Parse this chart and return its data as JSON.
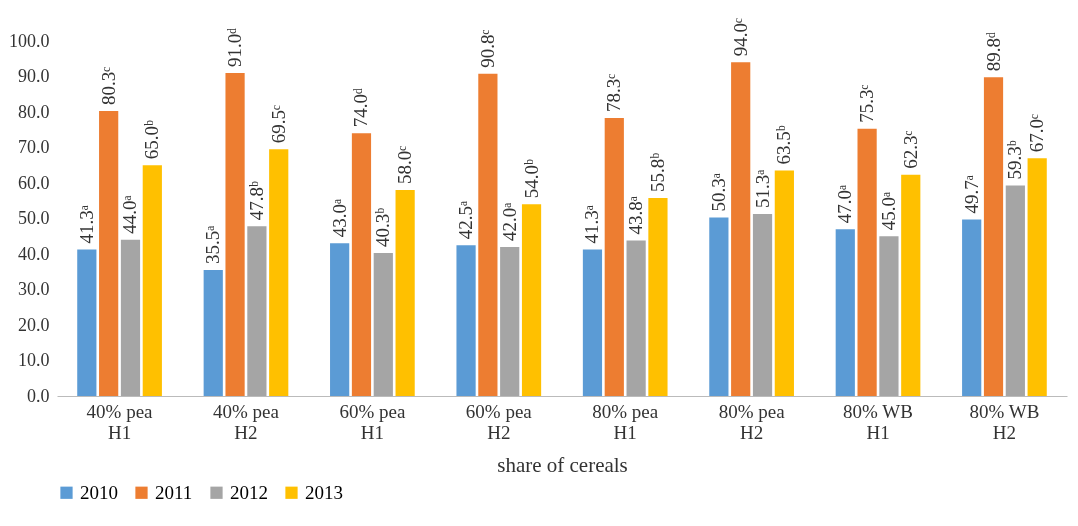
{
  "chart_data": {
    "type": "bar",
    "xlabel": "share of cereals",
    "categories": [
      "40%      pea\nH1",
      "40%      pea\nH2",
      "60%      pea\nH1",
      "60%      pea\nH2",
      "80%      pea\nH1",
      "80%      pea\nH2",
      "80%      WB\nH1",
      "80%      WB\nH2"
    ],
    "series": [
      {
        "name": "2010",
        "color": "#5b9bd5",
        "values": [
          41.3,
          35.5,
          43.0,
          42.5,
          41.3,
          50.3,
          47.0,
          49.7
        ],
        "value_labels": [
          "41.3ᵃ",
          "35.5ᵃ",
          "43.0ᵃ",
          "42.5ᵃ",
          "41.3ᵃ",
          "50.3ᵃ",
          "47.0ᵃ",
          "49.7ᵃ"
        ]
      },
      {
        "name": "2011",
        "color": "#ed7d31",
        "values": [
          80.3,
          91.0,
          74.0,
          90.8,
          78.3,
          94.0,
          75.3,
          89.8
        ],
        "value_labels": [
          "80.3ᶜ",
          "91.0ᵈ",
          "74.0ᵈ",
          "90.8ᶜ",
          "78.3ᶜ",
          "94.0ᶜ",
          "75.3ᶜ",
          "89.8ᵈ"
        ]
      },
      {
        "name": "2012",
        "color": "#a5a5a5",
        "values": [
          44.0,
          47.8,
          40.3,
          42.0,
          43.8,
          51.3,
          45.0,
          59.3
        ],
        "value_labels": [
          "44.0ᵃ",
          "47.8ᵇ",
          "40.3ᵇ",
          "42.0ᵃ",
          "43.8ᵃ",
          "51.3ᵃ",
          "45.0ᵃ",
          "59.3ᵇ"
        ]
      },
      {
        "name": "2013",
        "color": "#ffc000",
        "values": [
          65.0,
          69.5,
          58.0,
          54.0,
          55.8,
          63.5,
          62.3,
          67.0
        ],
        "value_labels": [
          "65.0ᵇ",
          "69.5ᶜ",
          "58.0ᶜ",
          "54.0ᵇ",
          "55.8ᵇ",
          "63.5ᵇ",
          "62.3ᶜ",
          "67.0ᶜ"
        ]
      }
    ],
    "ylim": [
      0,
      100
    ],
    "yticks": [
      {
        "value": 0,
        "label": "0.0"
      },
      {
        "value": 10,
        "label": "10.0"
      },
      {
        "value": 20,
        "label": "20.0"
      },
      {
        "value": 30,
        "label": "30.0"
      },
      {
        "value": 40,
        "label": "40.0"
      },
      {
        "value": 50,
        "label": "50.0"
      },
      {
        "value": 60,
        "label": "60.0"
      },
      {
        "value": 70,
        "label": "70.0"
      },
      {
        "value": 80,
        "label": "80.0"
      },
      {
        "value": 90,
        "label": "90.0"
      },
      {
        "value": 100,
        "label": "100.0"
      }
    ],
    "grid": false,
    "legend": "bottom"
  }
}
